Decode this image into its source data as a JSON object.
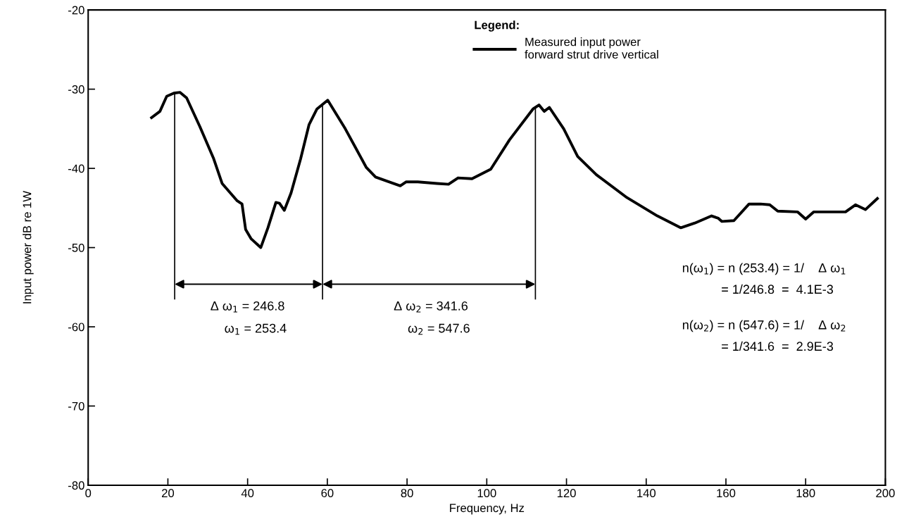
{
  "chart_data": {
    "type": "line",
    "xlabel": "Frequency, Hz",
    "ylabel": "Input power dB re 1W",
    "legend_title": "Legend:",
    "x": [
      15.9,
      18.0,
      19.7,
      21.5,
      23.0,
      24.7,
      28.0,
      31.5,
      33.6,
      37.4,
      38.6,
      39.5,
      40.9,
      43.3,
      45.1,
      47.1,
      48.0,
      49.2,
      50.9,
      53.3,
      55.4,
      57.4,
      60.1,
      64.5,
      69.8,
      72.1,
      78.3,
      79.8,
      82.7,
      87.5,
      90.4,
      92.8,
      96.3,
      101.0,
      105.7,
      111.6,
      113.1,
      114.4,
      115.7,
      119.3,
      122.8,
      127.5,
      135.2,
      142.8,
      148.7,
      152.2,
      156.4,
      158.1,
      159.0,
      162.0,
      165.8,
      168.7,
      171.0,
      173.0,
      178.0,
      180.0,
      182.0,
      190.0,
      192.5,
      195.0,
      198.0
    ],
    "series": [
      {
        "name": "Measured input power\nforward strut drive vertical",
        "color": "#000000",
        "values": [
          -33.6,
          -32.8,
          -30.9,
          -30.5,
          -30.4,
          -31.1,
          -34.7,
          -38.8,
          -41.9,
          -44.1,
          -44.5,
          -47.7,
          -48.9,
          -50.0,
          -47.5,
          -44.3,
          -44.4,
          -45.3,
          -43.1,
          -38.8,
          -34.5,
          -32.5,
          -31.4,
          -35.0,
          -39.9,
          -41.1,
          -42.2,
          -41.7,
          -41.7,
          -41.9,
          -42.0,
          -41.2,
          -41.3,
          -40.1,
          -36.4,
          -32.5,
          -32.0,
          -32.8,
          -32.3,
          -35.0,
          -38.5,
          -40.8,
          -43.7,
          -46.0,
          -47.5,
          -46.9,
          -46.0,
          -46.3,
          -46.7,
          -46.6,
          -44.5,
          -44.5,
          -44.6,
          -45.4,
          -45.5,
          -46.4,
          -45.5,
          -45.5,
          -44.6,
          -45.2,
          -43.8
        ]
      }
    ],
    "xlim": [
      0,
      200
    ],
    "xticks": [
      0,
      20,
      40,
      60,
      80,
      100,
      120,
      140,
      160,
      180,
      200
    ],
    "ylim": [
      -80,
      -20
    ],
    "yticks": [
      -80,
      -70,
      -60,
      -50,
      -40,
      -30,
      -20
    ],
    "ref_lines": [
      {
        "axis": "x",
        "value": 21.7
      },
      {
        "axis": "x",
        "value": 58.8
      },
      {
        "axis": "x",
        "value": 112.2
      }
    ],
    "annotations": [
      "Δ ω$_{1}$ = 246.8",
      "ω$_{1}$ = 253.4",
      "Δ ω$_{2}$ = 341.6",
      "ω$_{2}$ = 547.6",
      "n(ω$_{1}$) = n (253.4) = 1/    Δ ω$_{1}$",
      "= 1/246.8  =  4.1E-3",
      "n(ω$_{2}$) = n (547.6) = 1/    Δ ω$_{2}$",
      "= 1/341.6  =  2.9E-3"
    ],
    "legend": "top",
    "grid": false,
    "marker": "none",
    "line_style": "solid"
  }
}
